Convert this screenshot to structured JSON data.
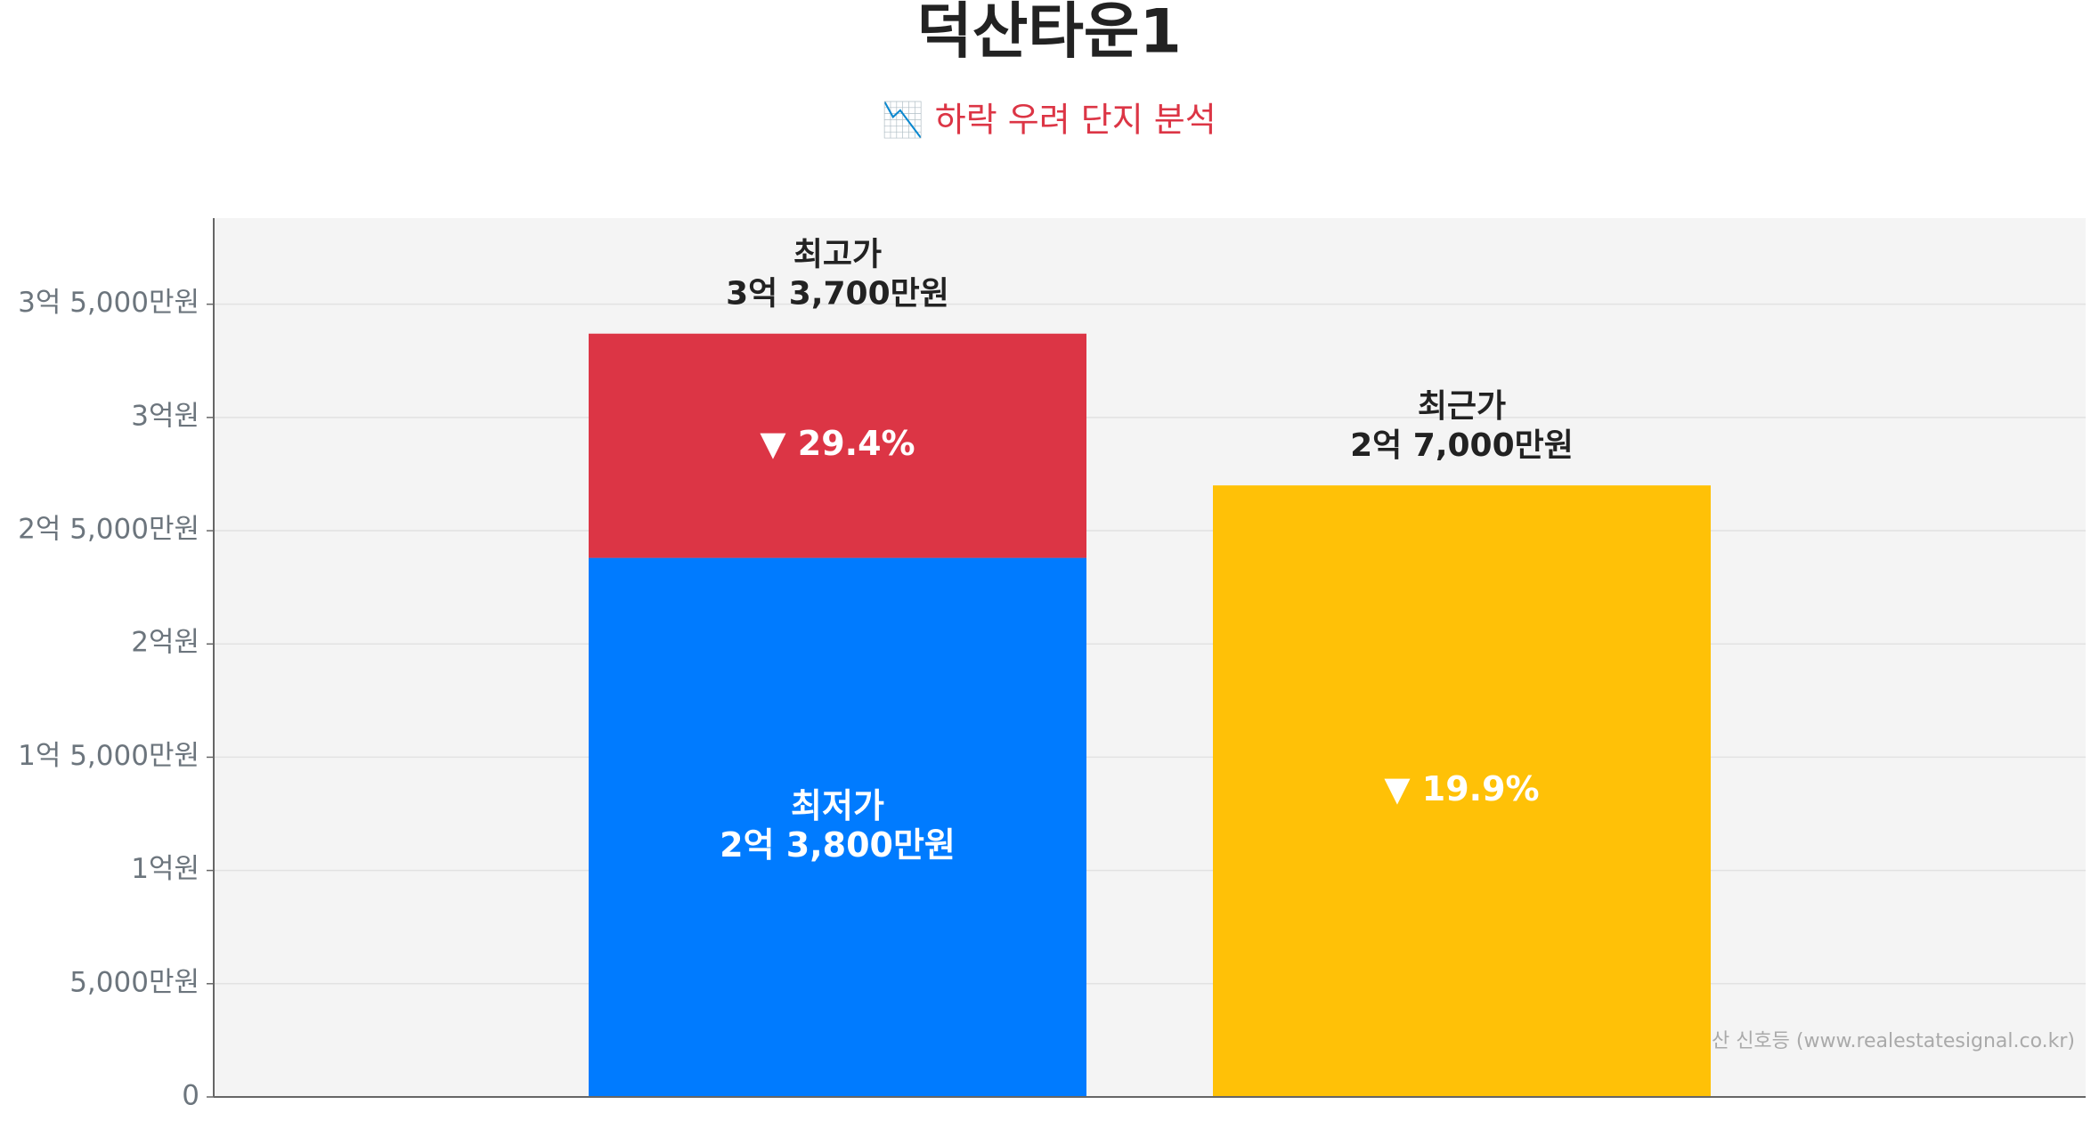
{
  "chart_data": {
    "type": "range-bar",
    "title": "덕산타운1",
    "subtitle": "📉 하락 우려 단지 분석",
    "source": "Source: 부동산 신호등 (www.realestatesignal.co.kr)",
    "ylim": [
      0,
      38800
    ],
    "yticks": [
      {
        "value": 0,
        "label": "0"
      },
      {
        "value": 5000,
        "label": "5,000만원"
      },
      {
        "value": 10000,
        "label": "1억원"
      },
      {
        "value": 15000,
        "label": "1억 5,000만원"
      },
      {
        "value": 20000,
        "label": "2억원"
      },
      {
        "value": 25000,
        "label": "2억 5,000만원"
      },
      {
        "value": 30000,
        "label": "3억원"
      },
      {
        "value": 35000,
        "label": "3억 5,000만원"
      }
    ],
    "grid": true,
    "stacked": {
      "base": {
        "name": "최저가",
        "value": 23800,
        "value_label": "2억 3,800만원",
        "color": "#007bff"
      },
      "top": {
        "name": "최고가",
        "value": 33700,
        "value_label": "3억 3,700만원",
        "color": "#dc3545"
      },
      "change": {
        "value": 29.4,
        "label": "▼ 29.4%"
      }
    },
    "recent": {
      "name": "최근가",
      "value": 27000,
      "value_label": "2억 7,000만원",
      "color": "#ffc107",
      "change": {
        "value": 19.9,
        "label": "▼ 19.9%"
      }
    }
  }
}
